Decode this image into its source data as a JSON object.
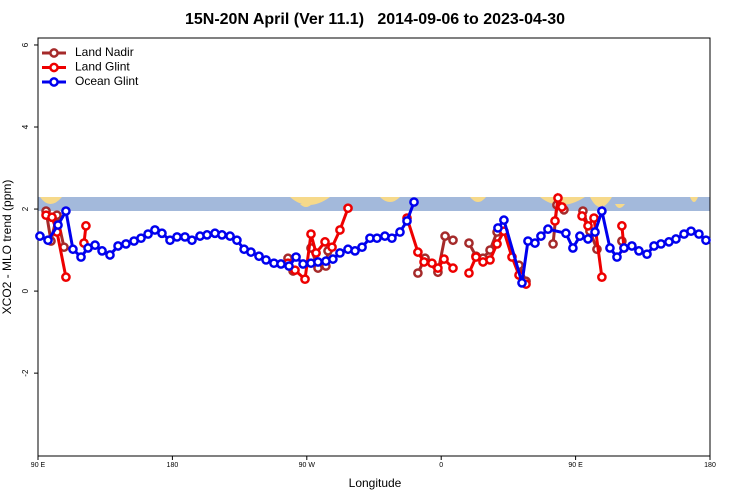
{
  "chart_data": {
    "type": "line",
    "title": "15N-20N April (Ver 11.1)   2014-09-06 to 2023-04-30",
    "x_label": "Longitude",
    "y_label": "XCO2 - MLO trend (ppm)",
    "xlim": [
      90,
      540
    ],
    "ylim": [
      -4.02,
      6.17
    ],
    "xticks": [
      {
        "value": 90,
        "label": "90 E"
      },
      {
        "value": 180,
        "label": "180"
      },
      {
        "value": 270,
        "label": "90 W"
      },
      {
        "value": 360,
        "label": "0"
      },
      {
        "value": 450,
        "label": "90 E"
      },
      {
        "value": 540,
        "label": "180"
      }
    ],
    "yticks": [
      -2,
      0,
      2,
      4,
      6
    ],
    "legend": "top-left",
    "series": [
      {
        "name": "Land Nadir",
        "color": "#a52a2a",
        "x": [
          95.4,
          98.7,
          102.7,
          107.4,
          null,
          257.4,
          260.8,
          null,
          272.8,
          277.5,
          282.8,
          284.2,
          null,
          344.4,
          349.2,
          357.8,
          362.6,
          367.9,
          null,
          378.6,
          383.3,
          388.0,
          392.7,
          397.4,
          null,
          412.1,
          416.8,
          null,
          434.9,
          437.5,
          442.2,
          null,
          454.9,
          459.6,
          464.3,
          null,
          481.0
        ],
        "values": [
          1.95,
          1.22,
          1.85,
          1.07,
          null,
          0.8,
          0.49,
          null,
          1.05,
          0.56,
          0.61,
          0.98,
          null,
          0.44,
          0.8,
          0.46,
          1.34,
          1.24,
          null,
          1.17,
          0.85,
          0.8,
          1.0,
          1.44,
          null,
          0.63,
          0.24,
          null,
          1.15,
          2.1,
          1.98,
          null,
          1.95,
          1.46,
          1.02,
          null,
          1.22
        ]
      },
      {
        "name": "Land Glint",
        "color": "#ee0000",
        "x": [
          95.4,
          99.4,
          102.7,
          108.7,
          null,
          120.8,
          122.1,
          null,
          257.4,
          262.1,
          268.8,
          272.8,
          276.2,
          282.2,
          286.9,
          292.2,
          297.6,
          null,
          337.1,
          344.4,
          348.5,
          353.8,
          357.8,
          361.9,
          367.9,
          null,
          378.6,
          383.3,
          388.0,
          392.7,
          397.4,
          402.0,
          407.4,
          412.1,
          416.8,
          null,
          436.2,
          438.2,
          440.9,
          null,
          454.3,
          458.3,
          462.3,
          467.6,
          null,
          481.0,
          482.4
        ],
        "values": [
          1.85,
          1.8,
          1.44,
          0.34,
          null,
          1.17,
          1.59,
          null,
          0.68,
          0.51,
          0.29,
          1.39,
          0.93,
          1.2,
          1.07,
          1.49,
          2.02,
          null,
          1.78,
          0.95,
          0.71,
          0.68,
          0.56,
          0.78,
          0.56,
          null,
          0.44,
          0.83,
          0.71,
          0.76,
          1.15,
          1.46,
          0.83,
          0.39,
          0.17,
          null,
          1.71,
          2.27,
          2.05,
          null,
          1.83,
          1.59,
          1.78,
          0.34,
          null,
          1.59,
          1.05
        ]
      },
      {
        "name": "Ocean Glint",
        "color": "#0000ee",
        "x": [
          91.3,
          96.7,
          103.4,
          108.7,
          113.4,
          118.8,
          123.5,
          128.2,
          132.9,
          138.2,
          143.6,
          148.9,
          154.3,
          159.0,
          163.7,
          168.3,
          173.0,
          178.4,
          183.1,
          188.4,
          193.1,
          198.5,
          203.2,
          208.5,
          213.2,
          218.6,
          223.2,
          228.0,
          232.6,
          238.0,
          242.7,
          248.0,
          252.7,
          258.1,
          262.8,
          267.5,
          272.8,
          277.5,
          282.8,
          287.5,
          292.2,
          297.6,
          302.3,
          307.0,
          312.3,
          317.0,
          322.3,
          327.0,
          332.4,
          337.1,
          341.8,
          null,
          398.0,
          402.0,
          414.1,
          418.1,
          422.8,
          426.8,
          431.5,
          443.5,
          448.2,
          452.9,
          458.3,
          463.0,
          467.6,
          473.0,
          477.7,
          482.4,
          487.7,
          492.4,
          497.8,
          502.5,
          507.2,
          512.5,
          517.2,
          522.6,
          527.3,
          532.6,
          537.3
        ],
        "values": [
          1.34,
          1.24,
          1.61,
          1.95,
          1.02,
          0.83,
          1.05,
          1.12,
          0.98,
          0.88,
          1.1,
          1.15,
          1.22,
          1.29,
          1.39,
          1.49,
          1.41,
          1.24,
          1.32,
          1.32,
          1.24,
          1.34,
          1.37,
          1.41,
          1.37,
          1.34,
          1.24,
          1.02,
          0.95,
          0.85,
          0.76,
          0.68,
          0.66,
          0.61,
          0.83,
          0.66,
          0.68,
          0.71,
          0.73,
          0.78,
          0.93,
          1.02,
          0.98,
          1.07,
          1.29,
          1.29,
          1.34,
          1.29,
          1.44,
          1.71,
          2.17,
          null,
          1.54,
          1.73,
          0.2,
          1.22,
          1.17,
          1.34,
          1.51,
          1.41,
          1.05,
          1.34,
          1.27,
          1.44,
          1.95,
          1.05,
          0.83,
          1.05,
          1.1,
          0.98,
          0.9,
          1.1,
          1.15,
          1.2,
          1.27,
          1.39,
          1.46,
          1.39,
          1.24
        ]
      }
    ]
  }
}
